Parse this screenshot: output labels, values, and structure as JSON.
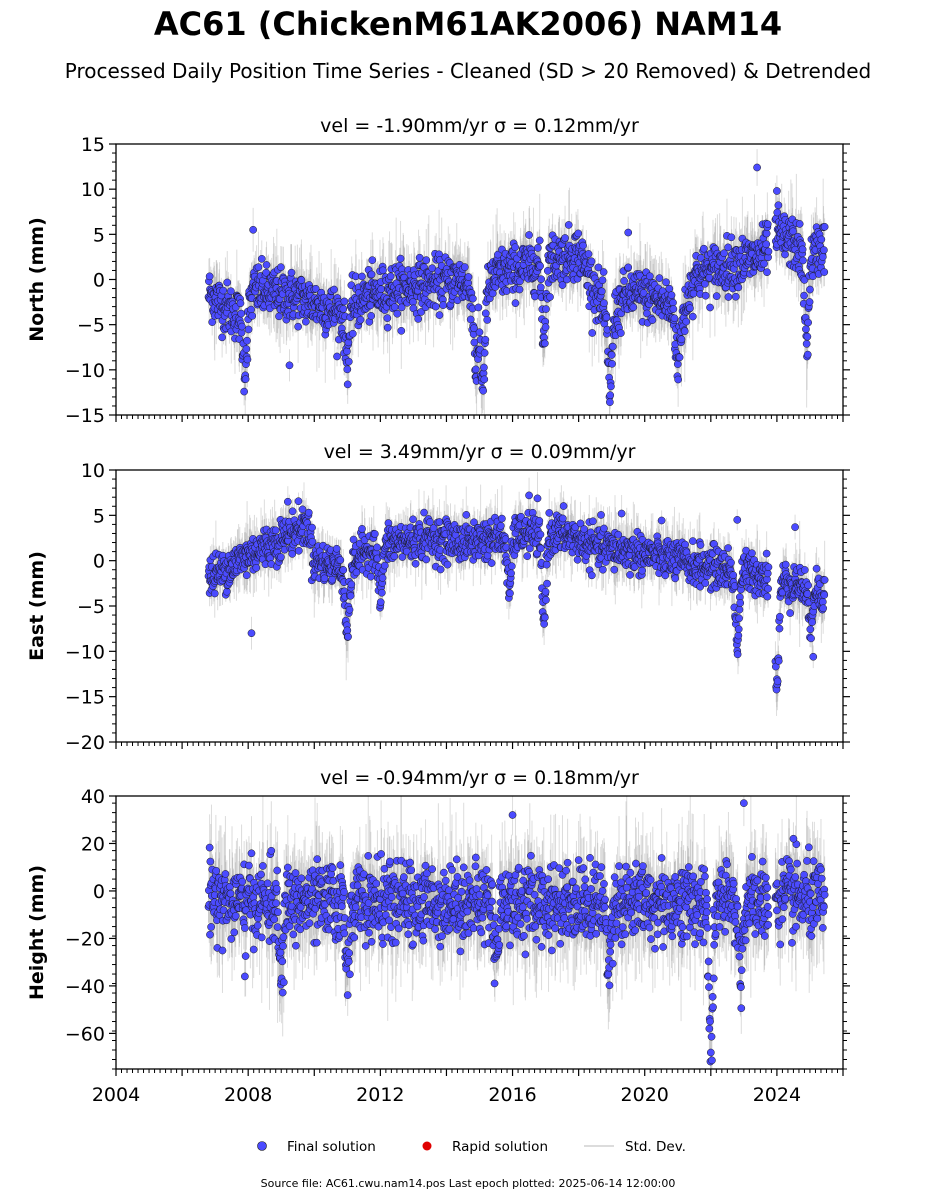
{
  "title": "AC61 (ChickenM61AK2006) NAM14",
  "subtitle": "Processed Daily Position Time Series - Cleaned (SD > 20 Removed) & Detrended",
  "legend": {
    "final": "Final solution",
    "rapid": "Rapid solution",
    "std": "Std. Dev.",
    "placement": "bottom-center"
  },
  "colors": {
    "final": "#4b4bff",
    "rapid": "#e00000",
    "std": "#bfbfbf",
    "marker_edge": "#1a1a1a"
  },
  "footer": "Source file: AC61.cwu.nam14.pos  Last epoch plotted: 2025-06-14 12:00:00",
  "chart_data": [
    {
      "type": "scatter",
      "panel": "north",
      "title": "vel = -1.90mm/yr   σ = 0.12mm/yr",
      "ylabel": "North (mm)",
      "xlim": [
        2004.0,
        2026.0
      ],
      "ylim": [
        -15,
        15
      ],
      "yticks": [
        -15,
        -10,
        -5,
        0,
        5,
        10,
        15
      ],
      "grid": false,
      "data_start": 2006.8,
      "data_end": 2025.45,
      "anchors": [
        [
          2006.8,
          -1.5
        ],
        [
          2007.3,
          -3.0
        ],
        [
          2007.9,
          -4.5
        ],
        [
          2008.2,
          -1.0
        ],
        [
          2008.7,
          -1.5
        ],
        [
          2009.5,
          -2.0
        ],
        [
          2010.3,
          -3.0
        ],
        [
          2010.9,
          -4.0
        ],
        [
          2011.5,
          -2.0
        ],
        [
          2012.5,
          -1.0
        ],
        [
          2013.5,
          -0.5
        ],
        [
          2014.5,
          0.0
        ],
        [
          2015.0,
          -3.0
        ],
        [
          2015.5,
          0.5
        ],
        [
          2016.5,
          1.5
        ],
        [
          2017.5,
          2.5
        ],
        [
          2018.0,
          3.0
        ],
        [
          2018.5,
          -1.0
        ],
        [
          2018.9,
          -5.0
        ],
        [
          2019.5,
          -1.5
        ],
        [
          2020.3,
          -2.0
        ],
        [
          2020.8,
          -3.0
        ],
        [
          2021.1,
          -5.0
        ],
        [
          2021.5,
          0.5
        ],
        [
          2022.5,
          1.5
        ],
        [
          2023.5,
          2.5
        ],
        [
          2024.0,
          5.0
        ],
        [
          2024.5,
          4.0
        ],
        [
          2024.9,
          2.0
        ],
        [
          2025.45,
          4.0
        ]
      ],
      "dips": [
        [
          2007.9,
          -10.0
        ],
        [
          2011.0,
          -8.5
        ],
        [
          2014.9,
          -10.0
        ],
        [
          2015.1,
          -11.5
        ],
        [
          2016.95,
          -6.5
        ],
        [
          2018.95,
          -12.0
        ],
        [
          2021.0,
          -9.0
        ],
        [
          2024.9,
          -7.0
        ]
      ],
      "outliers": [
        [
          2008.15,
          5.5
        ],
        [
          2009.25,
          -9.5
        ],
        [
          2019.5,
          5.2
        ],
        [
          2023.4,
          12.4
        ],
        [
          2024.0,
          9.8
        ]
      ],
      "scatter_sd": 1.4
    },
    {
      "type": "scatter",
      "panel": "east",
      "title": "vel = 3.49mm/yr   σ = 0.09mm/yr",
      "ylabel": "East (mm)",
      "xlim": [
        2004.0,
        2026.0
      ],
      "ylim": [
        -20,
        10
      ],
      "yticks": [
        -20,
        -15,
        -10,
        -5,
        0,
        5,
        10
      ],
      "grid": false,
      "data_start": 2006.8,
      "data_end": 2025.45,
      "anchors": [
        [
          2006.8,
          -2.0
        ],
        [
          2007.5,
          -0.5
        ],
        [
          2008.2,
          1.0
        ],
        [
          2008.8,
          2.0
        ],
        [
          2009.3,
          3.0
        ],
        [
          2009.8,
          4.0
        ],
        [
          2010.0,
          0.0
        ],
        [
          2010.6,
          -0.5
        ],
        [
          2011.0,
          -1.0
        ],
        [
          2011.5,
          1.0
        ],
        [
          2012.5,
          2.0
        ],
        [
          2013.5,
          2.5
        ],
        [
          2014.5,
          2.0
        ],
        [
          2015.5,
          2.5
        ],
        [
          2016.5,
          3.0
        ],
        [
          2017.5,
          3.0
        ],
        [
          2018.5,
          1.5
        ],
        [
          2019.5,
          1.0
        ],
        [
          2020.5,
          0.5
        ],
        [
          2021.5,
          -0.5
        ],
        [
          2022.5,
          -1.0
        ],
        [
          2023.5,
          -1.5
        ],
        [
          2024.0,
          -2.0
        ],
        [
          2024.5,
          -2.5
        ],
        [
          2025.45,
          -3.5
        ]
      ],
      "dips": [
        [
          2011.0,
          -8.0
        ],
        [
          2012.0,
          -4.0
        ],
        [
          2015.9,
          -3.5
        ],
        [
          2016.95,
          -6.5
        ],
        [
          2022.8,
          -9.0
        ],
        [
          2024.0,
          -13.5
        ],
        [
          2025.0,
          -7.0
        ]
      ],
      "outliers": [
        [
          2008.1,
          -8.0
        ],
        [
          2009.2,
          6.5
        ],
        [
          2016.5,
          7.2
        ],
        [
          2019.3,
          5.2
        ],
        [
          2022.8,
          4.5
        ],
        [
          2024.55,
          3.7
        ],
        [
          2025.1,
          -10.6
        ]
      ],
      "scatter_sd": 1.1
    },
    {
      "type": "scatter",
      "panel": "height",
      "title": "vel = -0.94mm/yr   σ = 0.18mm/yr",
      "ylabel": "Height (mm)",
      "xlim": [
        2004.0,
        2026.0
      ],
      "ylim": [
        -75,
        40
      ],
      "yticks": [
        -60,
        -40,
        -20,
        0,
        20,
        40
      ],
      "grid": false,
      "data_start": 2006.8,
      "data_end": 2025.45,
      "anchors": [
        [
          2006.8,
          0.0
        ],
        [
          2007.5,
          -5.0
        ],
        [
          2008.5,
          -5.0
        ],
        [
          2009.5,
          -5.0
        ],
        [
          2010.5,
          -5.0
        ],
        [
          2011.5,
          -5.0
        ],
        [
          2012.5,
          -5.0
        ],
        [
          2013.5,
          -5.0
        ],
        [
          2014.5,
          -5.0
        ],
        [
          2015.5,
          -5.0
        ],
        [
          2016.5,
          -5.0
        ],
        [
          2017.5,
          -5.0
        ],
        [
          2018.5,
          -5.0
        ],
        [
          2019.5,
          -5.0
        ],
        [
          2020.5,
          -5.0
        ],
        [
          2021.5,
          -5.0
        ],
        [
          2022.5,
          -5.0
        ],
        [
          2023.5,
          -5.0
        ],
        [
          2024.5,
          -3.0
        ],
        [
          2025.45,
          -5.0
        ]
      ],
      "dips": [
        [
          2009.0,
          -38.0
        ],
        [
          2011.0,
          -30.0
        ],
        [
          2015.5,
          -25.0
        ],
        [
          2018.9,
          -30.0
        ],
        [
          2022.0,
          -68.0
        ],
        [
          2022.9,
          -35.0
        ]
      ],
      "outliers": [
        [
          2016.0,
          32.0
        ],
        [
          2023.0,
          37.0
        ],
        [
          2024.5,
          22.0
        ],
        [
          2007.9,
          -36.0
        ]
      ],
      "scatter_sd": 8.0
    }
  ],
  "x_axis": {
    "major_ticks": [
      2004,
      2008,
      2012,
      2016,
      2020,
      2024
    ],
    "tick_labels": [
      "2004",
      "2008",
      "2012",
      "2016",
      "2020",
      "2024"
    ]
  }
}
